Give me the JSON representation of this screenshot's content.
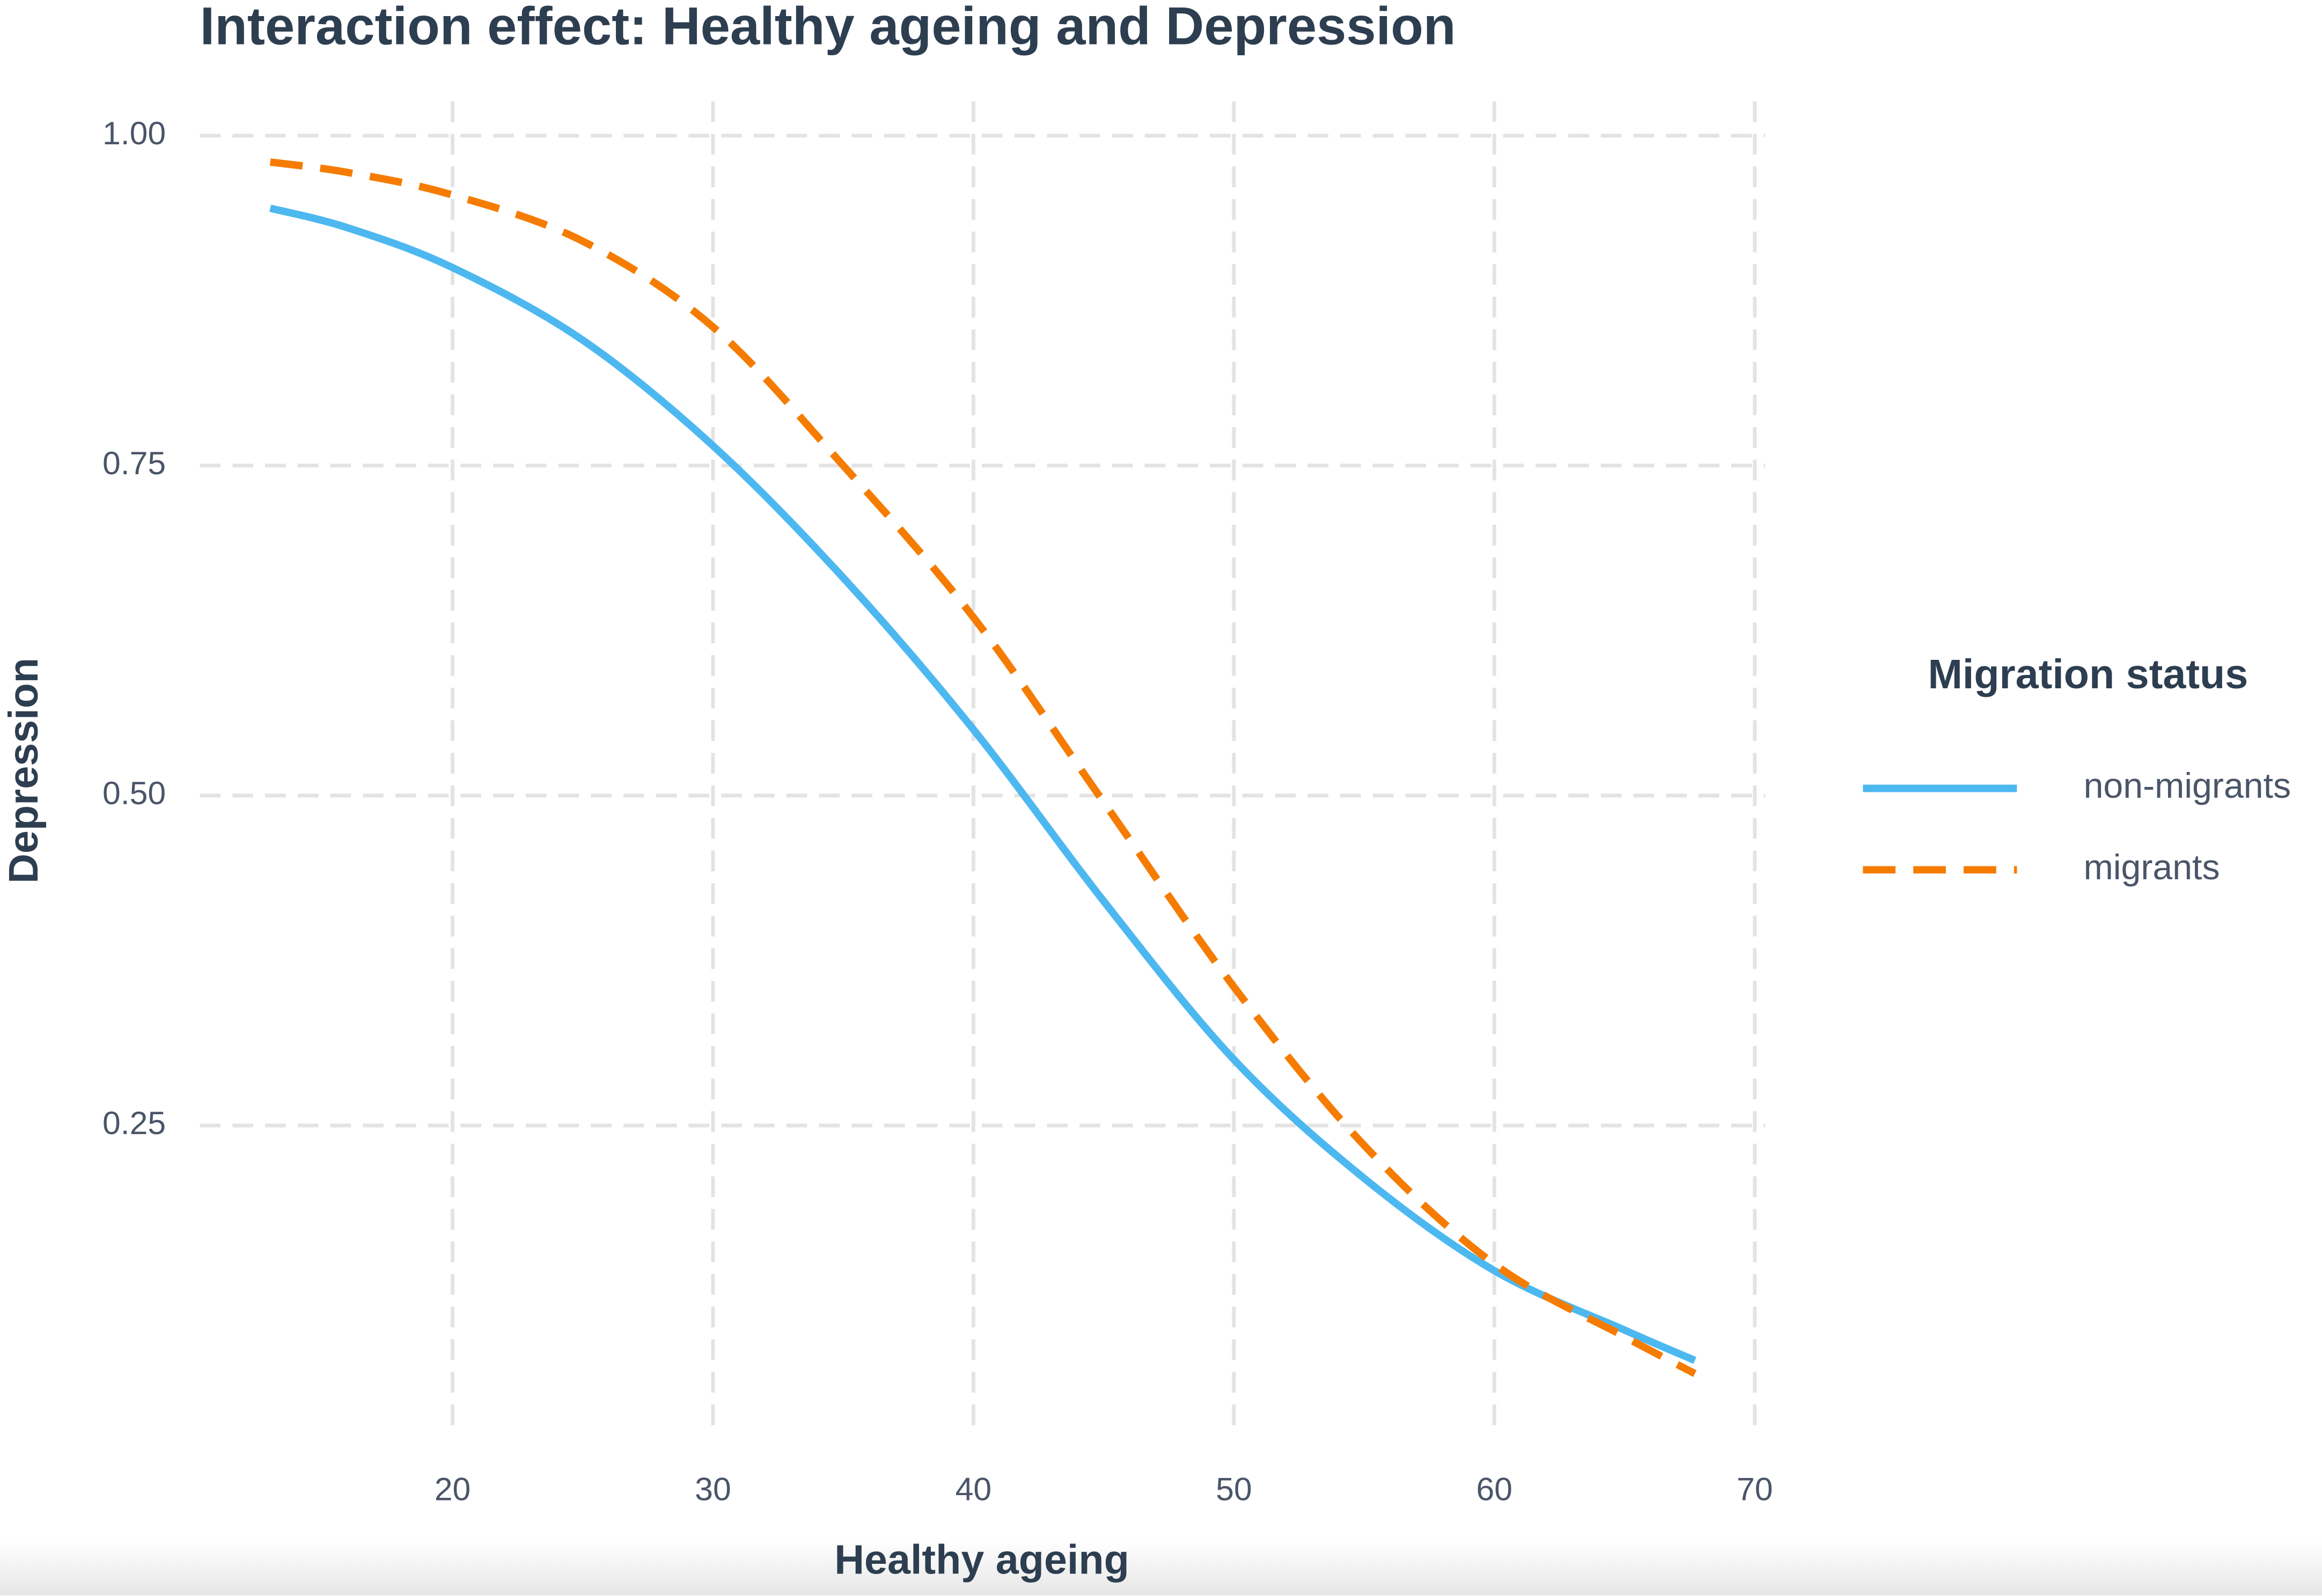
{
  "chart_data": {
    "type": "line",
    "title": "Interaction effect: Healthy ageing and Depression",
    "x_label": "Healthy ageing",
    "y_label": "Depression",
    "x": [
      13,
      16,
      20,
      25,
      30,
      35,
      40,
      45,
      50,
      55,
      60,
      65,
      67.7
    ],
    "series": [
      {
        "name": "non-migrants",
        "color": "#4db8f0",
        "dash": "solid",
        "values": [
          0.945,
          0.93,
          0.9,
          0.845,
          0.765,
          0.665,
          0.55,
          0.42,
          0.3,
          0.21,
          0.14,
          0.095,
          0.072
        ]
      },
      {
        "name": "migrants",
        "color": "#f57c00",
        "dash": "dashed",
        "values": [
          0.98,
          0.972,
          0.955,
          0.92,
          0.855,
          0.75,
          0.635,
          0.495,
          0.355,
          0.235,
          0.145,
          0.09,
          0.062
        ]
      }
    ],
    "xlim": [
      10.3,
      70.4
    ],
    "ylim": [
      0.014,
      1.026
    ],
    "xticks": [
      20,
      30,
      40,
      50,
      60,
      70
    ],
    "yticks": [
      {
        "value": 0.25,
        "label": "0.25"
      },
      {
        "value": 0.5,
        "label": "0.50"
      },
      {
        "value": 0.75,
        "label": "0.75"
      },
      {
        "value": 1,
        "label": "1.00"
      }
    ],
    "grid": true,
    "legend_title": "Migration status",
    "legend_position": "right"
  }
}
